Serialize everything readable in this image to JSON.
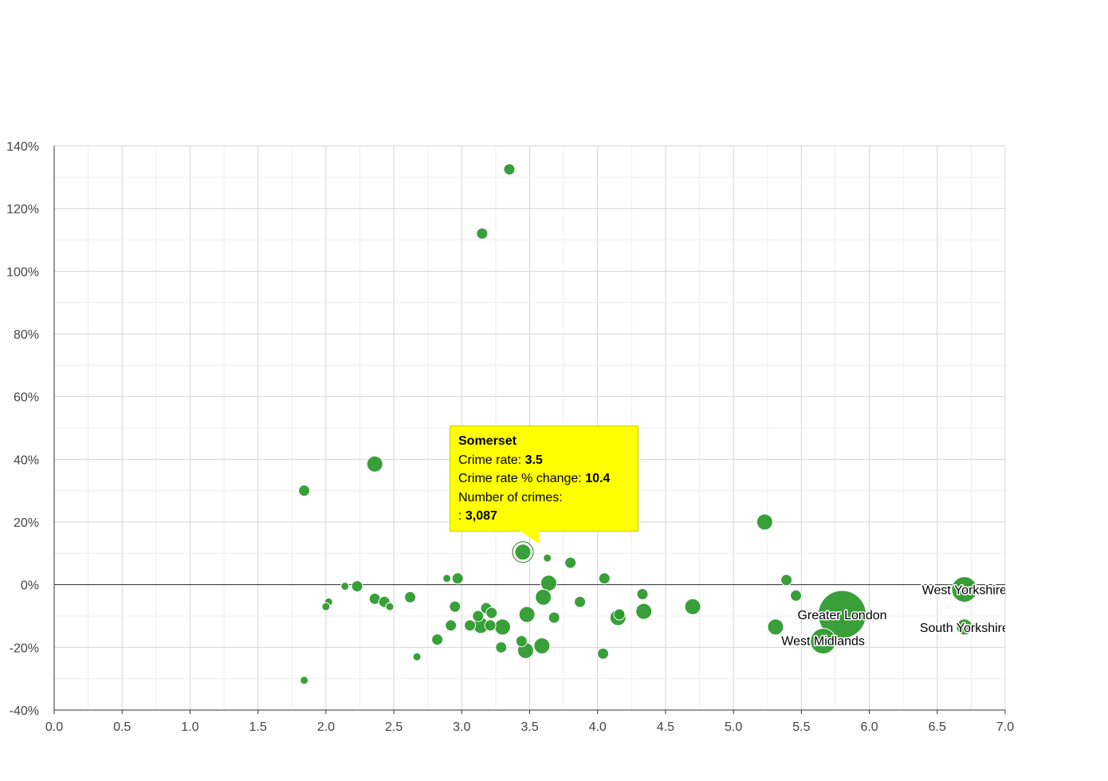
{
  "chart_data": {
    "type": "scatter",
    "title": "",
    "xlabel": "",
    "ylabel": "",
    "xlim": [
      0,
      7
    ],
    "ylim": [
      -40,
      140
    ],
    "x_ticks": [
      "0.0",
      "0.5",
      "1.0",
      "1.5",
      "2.0",
      "2.5",
      "3.0",
      "3.5",
      "4.0",
      "4.5",
      "5.0",
      "5.5",
      "6.0",
      "6.5",
      "7.0"
    ],
    "y_ticks": [
      "-40%",
      "-20%",
      "0%",
      "20%",
      "40%",
      "60%",
      "80%",
      "100%",
      "120%",
      "140%"
    ],
    "grid": true,
    "bubble_color": "#2e9a2e",
    "points": [
      {
        "x": 3.35,
        "y": 132.5,
        "size": "small"
      },
      {
        "x": 3.15,
        "y": 112,
        "size": "small"
      },
      {
        "x": 2.36,
        "y": 38.5,
        "size": "medium"
      },
      {
        "x": 1.84,
        "y": 30,
        "size": "small"
      },
      {
        "x": 5.23,
        "y": 20,
        "size": "medium"
      },
      {
        "x": 3.45,
        "y": 10.4,
        "size": "medium",
        "name": "Somerset",
        "highlighted": true
      },
      {
        "x": 3.63,
        "y": 8.5,
        "size": "tiny"
      },
      {
        "x": 3.8,
        "y": 7,
        "size": "small"
      },
      {
        "x": 2.89,
        "y": 2,
        "size": "tiny"
      },
      {
        "x": 2.97,
        "y": 2,
        "size": "small"
      },
      {
        "x": 4.05,
        "y": 2,
        "size": "small"
      },
      {
        "x": 5.39,
        "y": 1.5,
        "size": "small"
      },
      {
        "x": 3.64,
        "y": 0.5,
        "size": "medium"
      },
      {
        "x": 2.14,
        "y": -0.5,
        "size": "tiny"
      },
      {
        "x": 2.23,
        "y": -0.5,
        "size": "small"
      },
      {
        "x": 6.7,
        "y": -1.5,
        "size": "large",
        "name": "West Yorkshire"
      },
      {
        "x": 4.33,
        "y": -3,
        "size": "small"
      },
      {
        "x": 5.46,
        "y": -3.5,
        "size": "small"
      },
      {
        "x": 2.62,
        "y": -4,
        "size": "small"
      },
      {
        "x": 3.6,
        "y": -4,
        "size": "medium"
      },
      {
        "x": 2.36,
        "y": -4.5,
        "size": "small"
      },
      {
        "x": 2.02,
        "y": -5.5,
        "size": "tiny"
      },
      {
        "x": 2.43,
        "y": -5.5,
        "size": "small"
      },
      {
        "x": 3.87,
        "y": -5.5,
        "size": "small"
      },
      {
        "x": 2.0,
        "y": -7,
        "size": "tiny"
      },
      {
        "x": 2.47,
        "y": -7,
        "size": "tiny"
      },
      {
        "x": 2.95,
        "y": -7,
        "size": "small"
      },
      {
        "x": 4.7,
        "y": -7,
        "size": "medium"
      },
      {
        "x": 3.18,
        "y": -7.5,
        "size": "small"
      },
      {
        "x": 4.34,
        "y": -8.5,
        "size": "medium"
      },
      {
        "x": 3.22,
        "y": -9,
        "size": "small"
      },
      {
        "x": 4.16,
        "y": -9.5,
        "size": "small"
      },
      {
        "x": 5.8,
        "y": -9.5,
        "size": "huge",
        "name": "Greater London"
      },
      {
        "x": 3.12,
        "y": -10,
        "size": "small"
      },
      {
        "x": 3.48,
        "y": -9.5,
        "size": "medium"
      },
      {
        "x": 3.68,
        "y": -10.5,
        "size": "small"
      },
      {
        "x": 4.15,
        "y": -10.5,
        "size": "medium"
      },
      {
        "x": 2.92,
        "y": -13,
        "size": "small"
      },
      {
        "x": 3.06,
        "y": -13,
        "size": "small"
      },
      {
        "x": 3.14,
        "y": -13,
        "size": "medium"
      },
      {
        "x": 3.21,
        "y": -13,
        "size": "small"
      },
      {
        "x": 3.3,
        "y": -13.5,
        "size": "medium"
      },
      {
        "x": 5.31,
        "y": -13.5,
        "size": "medium"
      },
      {
        "x": 6.7,
        "y": -13.5,
        "size": "medium",
        "name": "South Yorkshire"
      },
      {
        "x": 2.82,
        "y": -17.5,
        "size": "small"
      },
      {
        "x": 3.44,
        "y": -18,
        "size": "small"
      },
      {
        "x": 5.66,
        "y": -18,
        "size": "large",
        "name": "West Midlands"
      },
      {
        "x": 3.29,
        "y": -20,
        "size": "small"
      },
      {
        "x": 3.59,
        "y": -19.5,
        "size": "medium"
      },
      {
        "x": 3.47,
        "y": -21,
        "size": "medium"
      },
      {
        "x": 4.04,
        "y": -22,
        "size": "small"
      },
      {
        "x": 2.67,
        "y": -23,
        "size": "tiny"
      },
      {
        "x": 1.84,
        "y": -30.5,
        "size": "tiny"
      }
    ]
  },
  "tooltip": {
    "name": "Somerset",
    "crime_rate_label": "Crime rate: ",
    "crime_rate_value": "3.5",
    "change_label": "Crime rate % change: ",
    "change_value": "10.4",
    "crimes_label": "Number of crimes:",
    "crimes_prefix": ": ",
    "crimes_value": "3,087"
  }
}
